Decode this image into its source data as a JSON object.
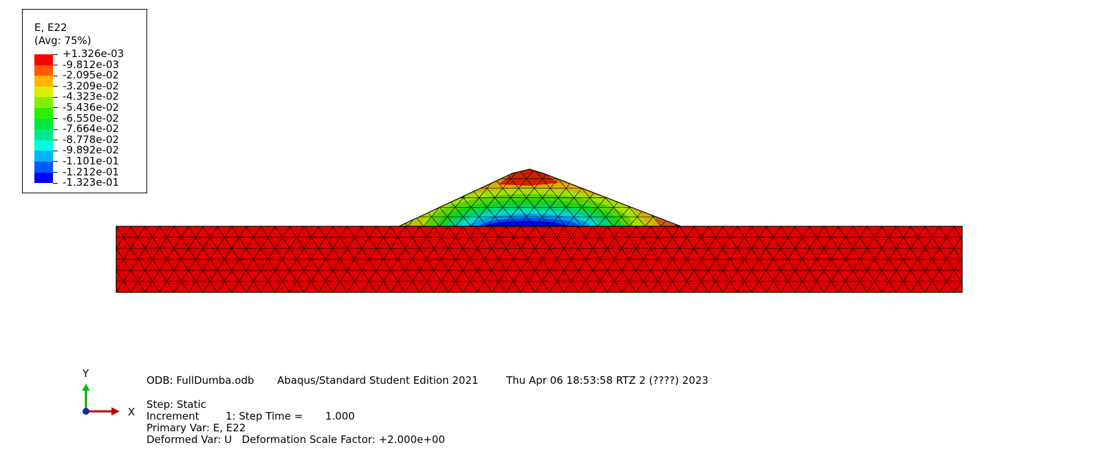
{
  "legend": {
    "title": "E, E22",
    "subtitle": "(Avg: 75%)",
    "levels": [
      "+1.326e-03",
      "-9.812e-03",
      "-2.095e-02",
      "-3.209e-02",
      "-4.323e-02",
      "-5.436e-02",
      "-6.550e-02",
      "-7.664e-02",
      "-8.778e-02",
      "-9.892e-02",
      "-1.101e-01",
      "-1.212e-01",
      "-1.323e-01"
    ],
    "colors": [
      "#ff0000",
      "#ff5a00",
      "#ffb400",
      "#d8ef00",
      "#82ef00",
      "#2bef00",
      "#00e83a",
      "#00e88e",
      "#00ffe2",
      "#00b4ff",
      "#005aff",
      "#0000ff"
    ]
  },
  "triad": {
    "y_label": "Y",
    "x_label": "X"
  },
  "footer": {
    "odb": "ODB: FullDumba.odb",
    "edition": "Abaqus/Standard Student Edition 2021",
    "timestamp": "Thu Apr 06 18:53:58 RTZ 2 (????) 2023",
    "step": "Step: Static",
    "increment_label": "Increment",
    "increment_value": "1: Step Time =",
    "step_time": "1.000",
    "primary_var": "Primary Var: E, E22",
    "deformed_var": "Deformed Var: U   Deformation Scale Factor: +2.000e+00"
  }
}
